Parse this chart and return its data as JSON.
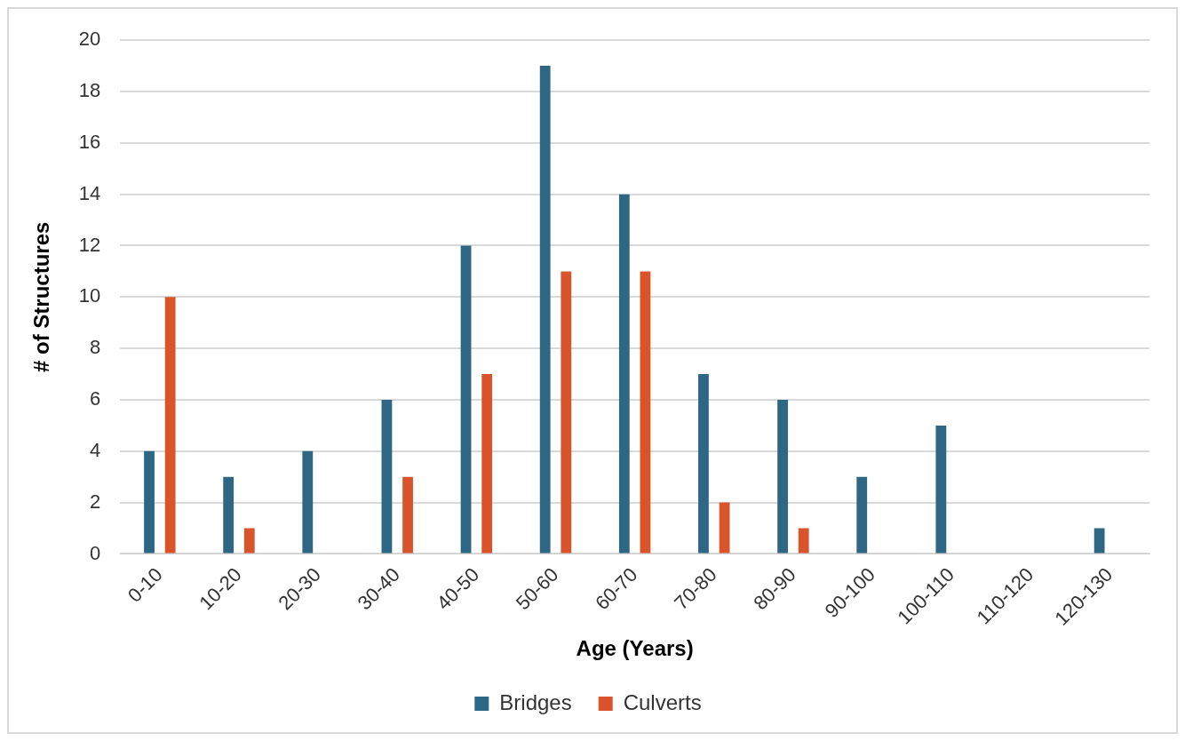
{
  "chart_data": {
    "type": "bar",
    "xlabel": "Age (Years)",
    "ylabel": "# of Structures",
    "categories": [
      "0-10",
      "10-20",
      "20-30",
      "30-40",
      "40-50",
      "50-60",
      "60-70",
      "70-80",
      "80-90",
      "90-100",
      "100-110",
      "110-120",
      "120-130"
    ],
    "series": [
      {
        "name": "Bridges",
        "color": "#2e6784",
        "values": [
          4,
          3,
          4,
          6,
          12,
          19,
          14,
          7,
          6,
          3,
          5,
          0,
          1
        ]
      },
      {
        "name": "Culverts",
        "color": "#d9542b",
        "values": [
          10,
          1,
          0,
          3,
          7,
          11,
          11,
          2,
          1,
          0,
          0,
          0,
          0
        ]
      }
    ],
    "ylim": [
      0,
      20
    ],
    "yticks": [
      0,
      2,
      4,
      6,
      8,
      10,
      12,
      14,
      16,
      18,
      20
    ],
    "grid": "y",
    "legend": "bottom"
  }
}
